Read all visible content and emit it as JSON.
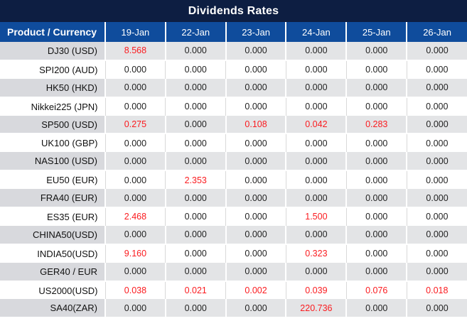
{
  "title": "Dividends Rates",
  "colors": {
    "title_bar_bg": "#0d1e42",
    "header_bg": "#0f4c9c",
    "gray_row_value_bg": "#e3e4e6",
    "gray_row_product_bg": "#d8d9dd",
    "white_row_bg": "#ffffff",
    "value_text": "#222222",
    "highlight_red": "#fb1b1f"
  },
  "table": {
    "header": [
      "Product / Currency",
      "19-Jan",
      "22-Jan",
      "23-Jan",
      "24-Jan",
      "25-Jan",
      "26-Jan"
    ],
    "rows": [
      {
        "product": "DJ30 (USD)",
        "values": [
          "8.568",
          "0.000",
          "0.000",
          "0.000",
          "0.000",
          "0.000"
        ],
        "red": [
          0
        ]
      },
      {
        "product": "SPI200 (AUD)",
        "values": [
          "0.000",
          "0.000",
          "0.000",
          "0.000",
          "0.000",
          "0.000"
        ],
        "red": []
      },
      {
        "product": "HK50 (HKD)",
        "values": [
          "0.000",
          "0.000",
          "0.000",
          "0.000",
          "0.000",
          "0.000"
        ],
        "red": []
      },
      {
        "product": "Nikkei225 (JPN)",
        "values": [
          "0.000",
          "0.000",
          "0.000",
          "0.000",
          "0.000",
          "0.000"
        ],
        "red": []
      },
      {
        "product": "SP500 (USD)",
        "values": [
          "0.275",
          "0.000",
          "0.108",
          "0.042",
          "0.283",
          "0.000"
        ],
        "red": [
          0,
          2,
          3,
          4
        ]
      },
      {
        "product": "UK100 (GBP)",
        "values": [
          "0.000",
          "0.000",
          "0.000",
          "0.000",
          "0.000",
          "0.000"
        ],
        "red": []
      },
      {
        "product": "NAS100 (USD)",
        "values": [
          "0.000",
          "0.000",
          "0.000",
          "0.000",
          "0.000",
          "0.000"
        ],
        "red": []
      },
      {
        "product": "EU50 (EUR)",
        "values": [
          "0.000",
          "2.353",
          "0.000",
          "0.000",
          "0.000",
          "0.000"
        ],
        "red": [
          1
        ]
      },
      {
        "product": "FRA40 (EUR)",
        "values": [
          "0.000",
          "0.000",
          "0.000",
          "0.000",
          "0.000",
          "0.000"
        ],
        "red": []
      },
      {
        "product": "ES35 (EUR)",
        "values": [
          "2.468",
          "0.000",
          "0.000",
          "1.500",
          "0.000",
          "0.000"
        ],
        "red": [
          0,
          3
        ]
      },
      {
        "product": "CHINA50(USD)",
        "values": [
          "0.000",
          "0.000",
          "0.000",
          "0.000",
          "0.000",
          "0.000"
        ],
        "red": []
      },
      {
        "product": "INDIA50(USD)",
        "values": [
          "9.160",
          "0.000",
          "0.000",
          "0.323",
          "0.000",
          "0.000"
        ],
        "red": [
          0,
          3
        ]
      },
      {
        "product": "GER40 / EUR",
        "values": [
          "0.000",
          "0.000",
          "0.000",
          "0.000",
          "0.000",
          "0.000"
        ],
        "red": []
      },
      {
        "product": "US2000(USD)",
        "values": [
          "0.038",
          "0.021",
          "0.002",
          "0.039",
          "0.076",
          "0.018"
        ],
        "red": [
          0,
          1,
          2,
          3,
          4,
          5
        ]
      },
      {
        "product": "SA40(ZAR)",
        "values": [
          "0.000",
          "0.000",
          "0.000",
          "220.736",
          "0.000",
          "0.000"
        ],
        "red": [
          3
        ]
      }
    ]
  }
}
